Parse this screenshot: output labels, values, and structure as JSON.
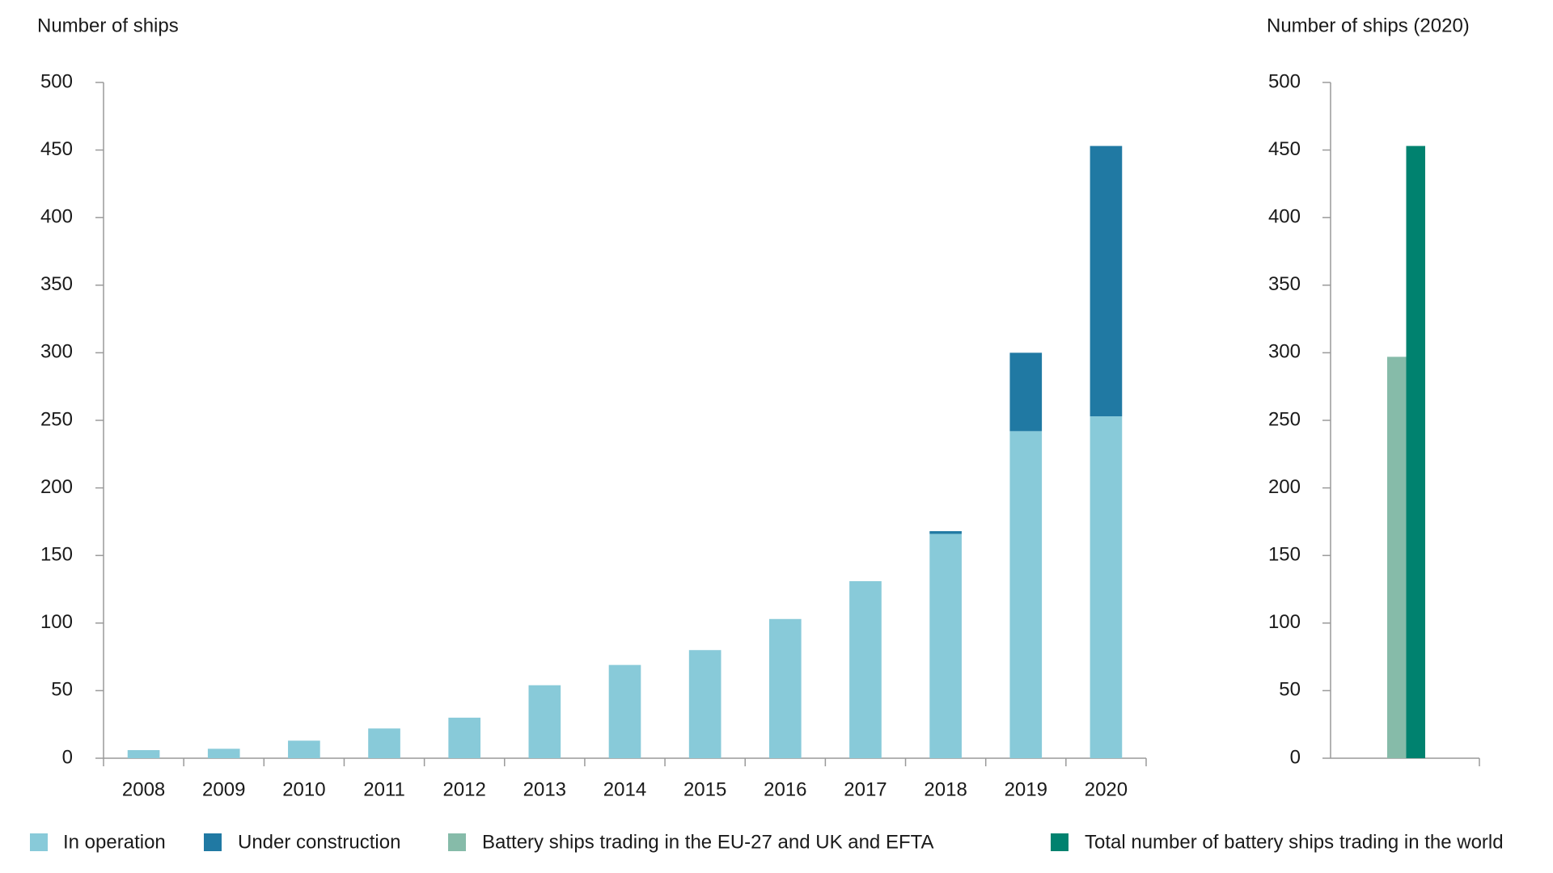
{
  "chart_data": [
    {
      "type": "bar",
      "stacked": true,
      "y_label": "Number of ships",
      "categories": [
        "2008",
        "2009",
        "2010",
        "2011",
        "2012",
        "2013",
        "2014",
        "2015",
        "2016",
        "2017",
        "2018",
        "2019",
        "2020"
      ],
      "series": [
        {
          "name": "In operation",
          "color": "#88cad9",
          "values": [
            6,
            7,
            13,
            22,
            30,
            54,
            69,
            80,
            103,
            131,
            166,
            242,
            253
          ]
        },
        {
          "name": "Under construction",
          "color": "#2079a3",
          "values": [
            0,
            0,
            0,
            0,
            0,
            0,
            0,
            0,
            0,
            0,
            2,
            58,
            200
          ]
        }
      ],
      "ylim": [
        0,
        500
      ],
      "yticks": [
        0,
        50,
        100,
        150,
        200,
        250,
        300,
        350,
        400,
        450,
        500
      ]
    },
    {
      "type": "bar",
      "stacked": false,
      "y_label": "Number of ships (2020)",
      "categories": [
        null
      ],
      "series": [
        {
          "name": "Battery ships trading in the EU-27 and UK and EFTA",
          "color": "#86bba9",
          "values": [
            297
          ]
        },
        {
          "name": "Total number of battery ships trading in the world",
          "color": "#00826f",
          "values": [
            453
          ]
        }
      ],
      "ylim": [
        0,
        500
      ],
      "yticks": [
        0,
        50,
        100,
        150,
        200,
        250,
        300,
        350,
        400,
        450,
        500
      ]
    }
  ]
}
